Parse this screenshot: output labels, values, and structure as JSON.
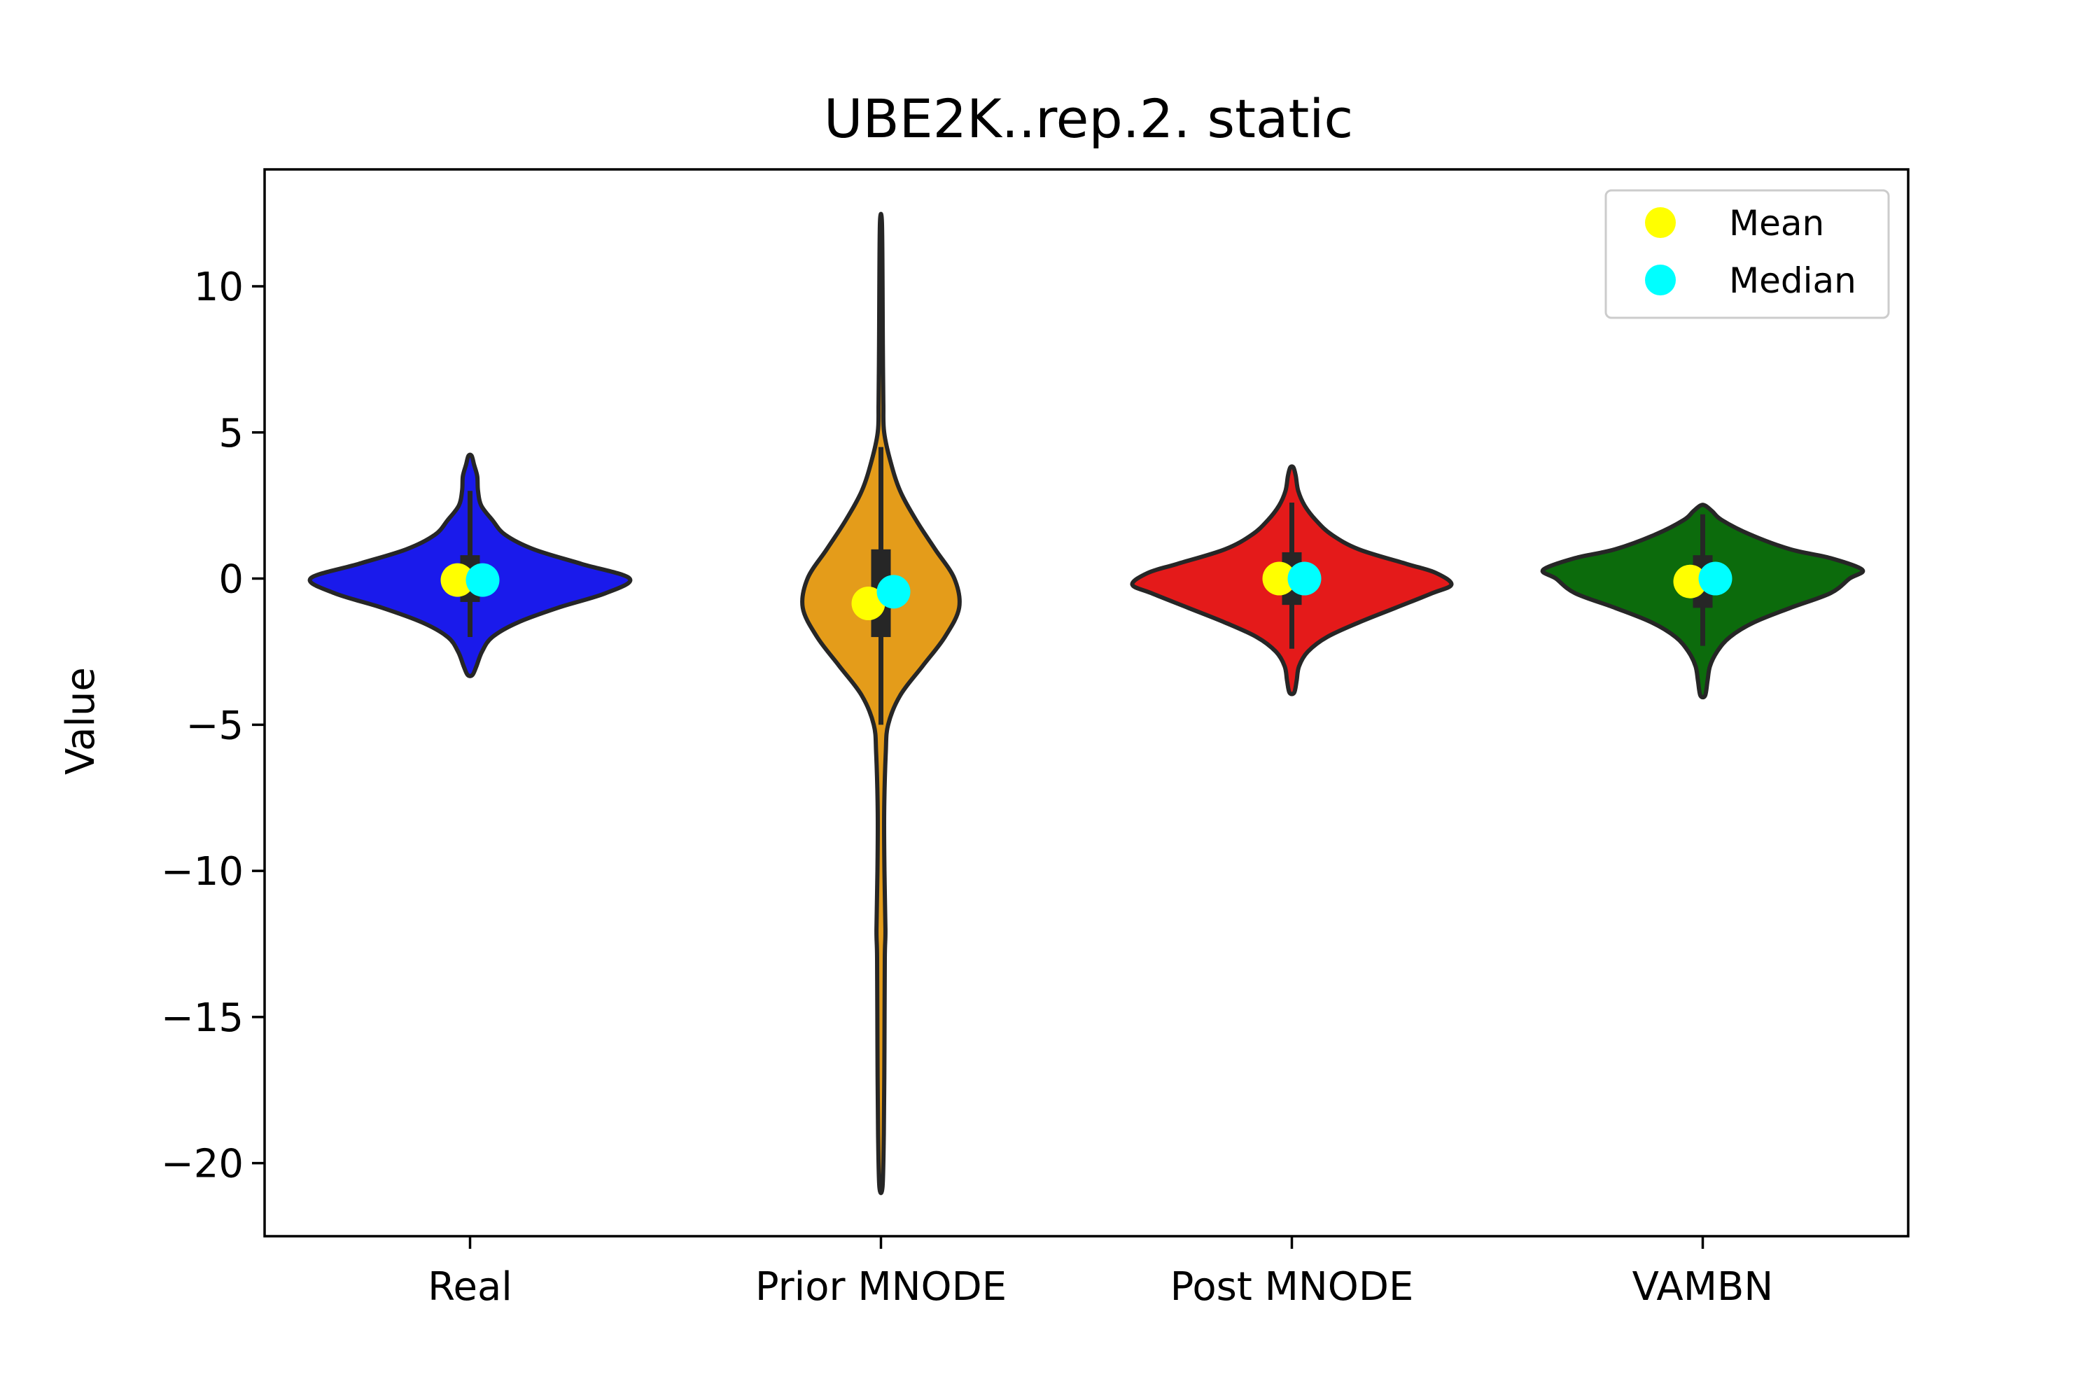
{
  "chart_data": {
    "type": "violin",
    "title": "UBE2K..rep.2. static",
    "xlabel": "",
    "ylabel": "Value",
    "ylim": [
      -22.5,
      14
    ],
    "yticks": [
      10,
      5,
      0,
      -5,
      -10,
      -15,
      -20
    ],
    "ytick_labels": [
      "10",
      "5",
      "0",
      "−5",
      "−10",
      "−15",
      "−20"
    ],
    "grid": false,
    "legend_position": "top-right",
    "legend": [
      {
        "label": "Mean",
        "color": "#ffff00"
      },
      {
        "label": "Median",
        "color": "#00ffff"
      }
    ],
    "categories": [
      "Real",
      "Prior MNODE",
      "Post MNODE",
      "VAMBN"
    ],
    "series": [
      {
        "category": "Real",
        "color": "#1a1aeb",
        "min": -3.3,
        "max": 4.2,
        "q1": -0.8,
        "q3": 0.8,
        "whisker_low": -2.0,
        "whisker_high": 3.0,
        "mean": -0.05,
        "median": -0.05,
        "density": [
          [
            -3.3,
            0.015
          ],
          [
            -3.0,
            0.04
          ],
          [
            -2.5,
            0.075
          ],
          [
            -2.0,
            0.14
          ],
          [
            -1.5,
            0.3
          ],
          [
            -1.0,
            0.55
          ],
          [
            -0.5,
            0.85
          ],
          [
            0.0,
            1.0
          ],
          [
            0.5,
            0.7
          ],
          [
            1.0,
            0.4
          ],
          [
            1.5,
            0.22
          ],
          [
            2.0,
            0.14
          ],
          [
            2.5,
            0.07
          ],
          [
            3.0,
            0.05
          ],
          [
            3.5,
            0.045
          ],
          [
            3.9,
            0.025
          ],
          [
            4.2,
            0.01
          ]
        ]
      },
      {
        "category": "Prior MNODE",
        "color": "#e49c1a",
        "min": -20.8,
        "max": 12.2,
        "q1": -2.0,
        "q3": 1.0,
        "whisker_low": -5.0,
        "whisker_high": 4.5,
        "mean": -0.85,
        "median": -0.45,
        "density": [
          [
            -20.8,
            0.01
          ],
          [
            -19,
            0.018
          ],
          [
            -16,
            0.022
          ],
          [
            -13,
            0.024
          ],
          [
            -12,
            0.028
          ],
          [
            -10,
            0.022
          ],
          [
            -8,
            0.02
          ],
          [
            -6,
            0.03
          ],
          [
            -5,
            0.045
          ],
          [
            -4,
            0.12
          ],
          [
            -3,
            0.26
          ],
          [
            -2,
            0.4
          ],
          [
            -1,
            0.49
          ],
          [
            0,
            0.46
          ],
          [
            1,
            0.34
          ],
          [
            2,
            0.22
          ],
          [
            3,
            0.12
          ],
          [
            4,
            0.06
          ],
          [
            5,
            0.02
          ],
          [
            6,
            0.015
          ],
          [
            8,
            0.012
          ],
          [
            10,
            0.01
          ],
          [
            12.2,
            0.006
          ]
        ]
      },
      {
        "category": "Post MNODE",
        "color": "#e41a1a",
        "min": -3.9,
        "max": 3.8,
        "q1": -0.9,
        "q3": 0.9,
        "whisker_low": -2.4,
        "whisker_high": 2.6,
        "mean": 0.0,
        "median": 0.0,
        "density": [
          [
            -3.9,
            0.015
          ],
          [
            -3.5,
            0.03
          ],
          [
            -3.0,
            0.045
          ],
          [
            -2.5,
            0.1
          ],
          [
            -2.0,
            0.22
          ],
          [
            -1.5,
            0.42
          ],
          [
            -1.0,
            0.65
          ],
          [
            -0.5,
            0.88
          ],
          [
            -0.2,
            1.0
          ],
          [
            0.2,
            0.9
          ],
          [
            0.5,
            0.72
          ],
          [
            1.0,
            0.42
          ],
          [
            1.5,
            0.25
          ],
          [
            2.0,
            0.15
          ],
          [
            2.5,
            0.08
          ],
          [
            3.0,
            0.04
          ],
          [
            3.5,
            0.025
          ],
          [
            3.8,
            0.01
          ]
        ]
      },
      {
        "category": "VAMBN",
        "color": "#0c6b0c",
        "min": -4.0,
        "max": 2.5,
        "q1": -1.0,
        "q3": 0.8,
        "whisker_low": -2.3,
        "whisker_high": 2.2,
        "mean": -0.1,
        "median": 0.0,
        "density": [
          [
            -4.0,
            0.015
          ],
          [
            -3.5,
            0.03
          ],
          [
            -3.0,
            0.045
          ],
          [
            -2.5,
            0.09
          ],
          [
            -2.0,
            0.17
          ],
          [
            -1.5,
            0.32
          ],
          [
            -1.0,
            0.55
          ],
          [
            -0.5,
            0.8
          ],
          [
            0.0,
            0.92
          ],
          [
            0.3,
            1.0
          ],
          [
            0.7,
            0.8
          ],
          [
            1.0,
            0.55
          ],
          [
            1.5,
            0.3
          ],
          [
            2.0,
            0.12
          ],
          [
            2.3,
            0.06
          ],
          [
            2.5,
            0.015
          ]
        ]
      }
    ]
  }
}
